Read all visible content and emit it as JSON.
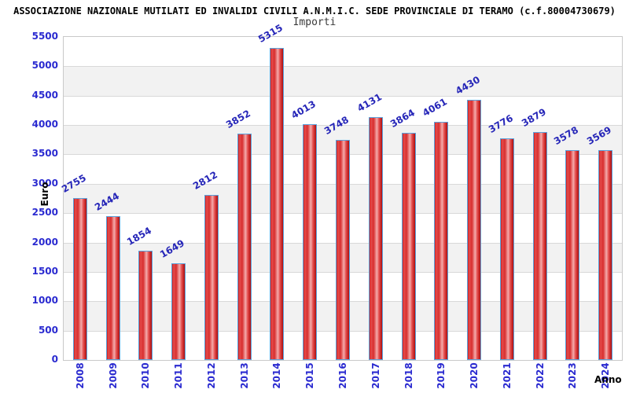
{
  "title": "ASSOCIAZIONE NAZIONALE MUTILATI ED INVALIDI CIVILI A.N.M.I.C. SEDE PROVINCIALE DI TERAMO (c.f.80004730679)",
  "chart_data": {
    "type": "bar",
    "legend": "Importi",
    "legend_position": "top-center",
    "xlabel": "Anno",
    "ylabel": "Euro",
    "categories": [
      "2008",
      "2009",
      "2010",
      "2011",
      "2012",
      "2013",
      "2014",
      "2015",
      "2016",
      "2017",
      "2018",
      "2019",
      "2020",
      "2021",
      "2022",
      "2023",
      "2024"
    ],
    "values": [
      2755,
      2444,
      1854,
      1649,
      2812,
      3852,
      5315,
      4013,
      3748,
      4131,
      3864,
      4061,
      4430,
      3776,
      3879,
      3578,
      3569
    ],
    "ylim": [
      0,
      5500
    ],
    "ytick_step": 500,
    "grid": true,
    "band_fill_alternating": true,
    "value_labels_rotated": true,
    "colors": {
      "bar_mid": "#d82f2f",
      "bar_bright": "#e44b4b",
      "bar_highlight": "#f4abab",
      "bar_dark": "#ad0f0f",
      "bar_edge": "#cc2020",
      "bar_border": "#5aa2dc",
      "value_label": "#2626b8",
      "axis_tick_label": "#2a2ad0",
      "band_alt": "#f2f2f2",
      "gridline": "#d9d9d9",
      "title_color": "#000000",
      "legend_color": "#3a3a3a"
    }
  }
}
